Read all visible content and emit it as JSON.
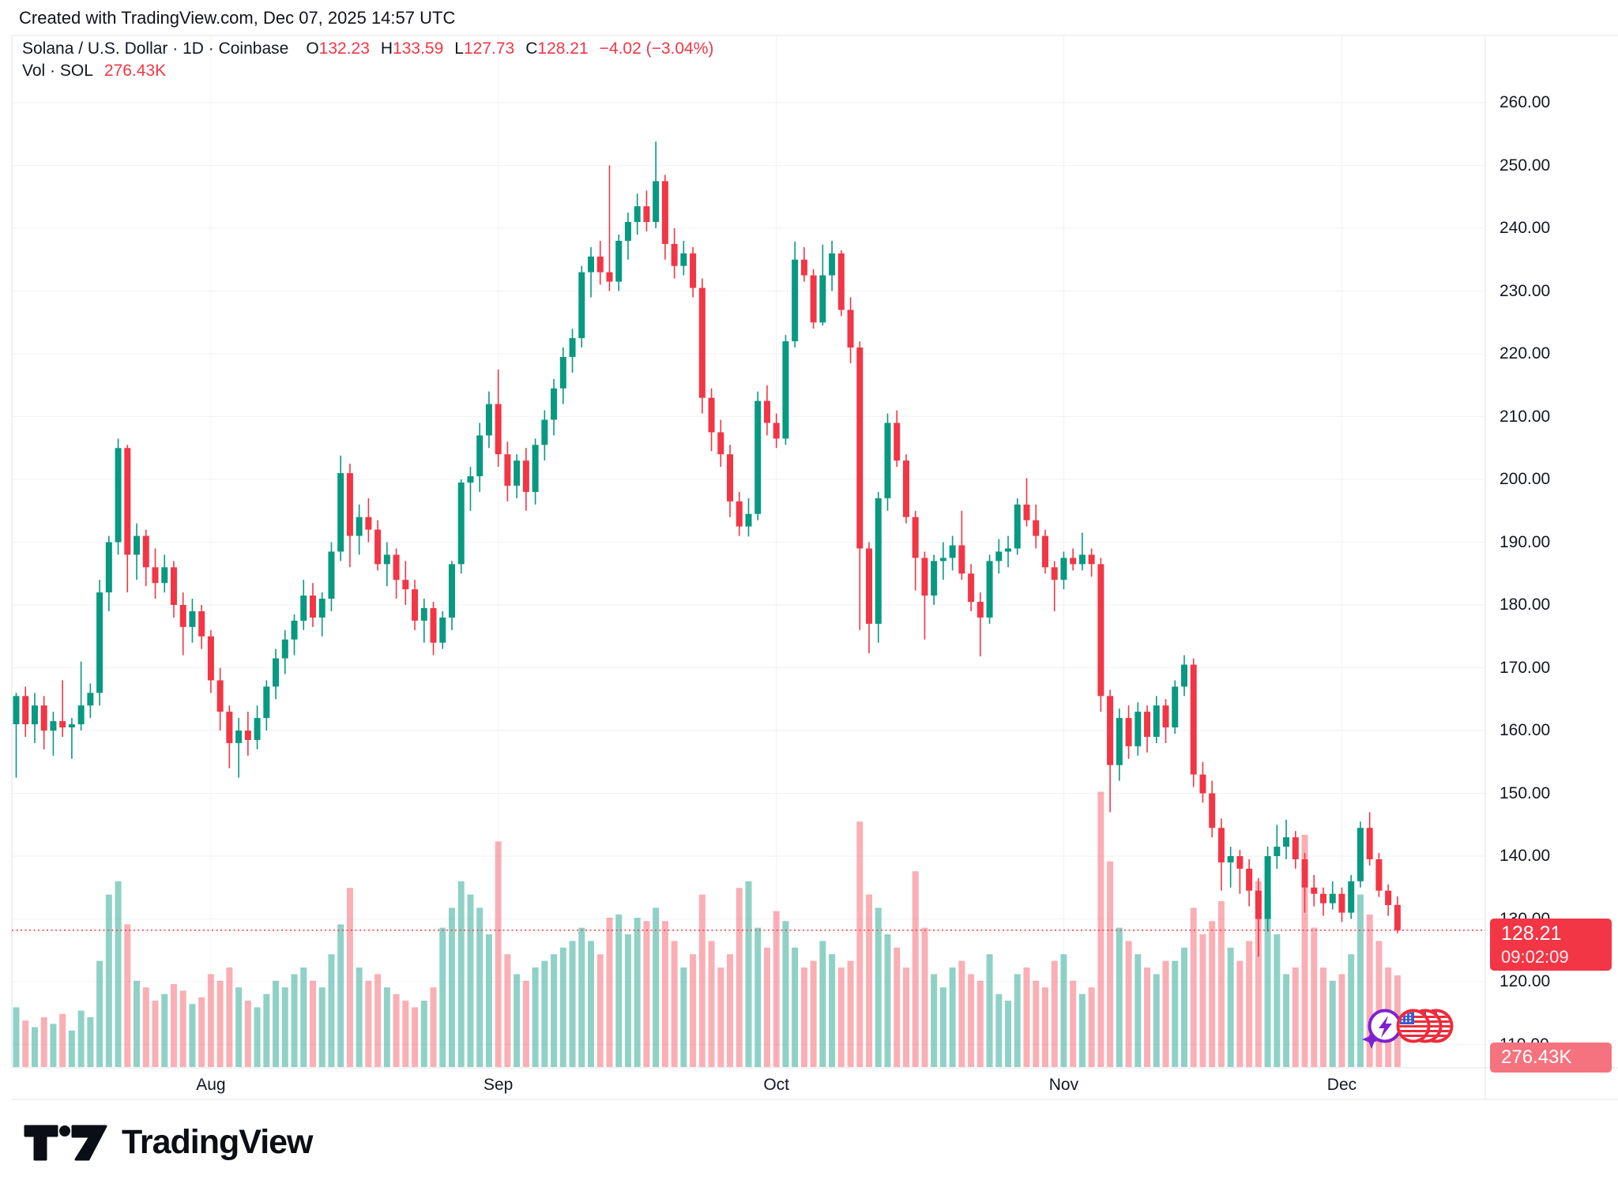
{
  "header": {
    "created_with": "Created with TradingView.com, Dec 07, 2025 14:57 UTC"
  },
  "legend": {
    "title_full": "Solana / U.S. Dollar · 1D · Coinbase",
    "o_label": "O",
    "o_value": "132.23",
    "h_label": "H",
    "h_value": "133.59",
    "l_label": "L",
    "l_value": "127.73",
    "c_label": "C",
    "c_value": "128.21",
    "change": "−4.02 (−3.04%)",
    "vol_label": "Vol · SOL",
    "vol_value": "276.43K"
  },
  "price_scale": {
    "tick_min": 110,
    "tick_max": 260,
    "tick_step": 10,
    "last_label": {
      "price": "128.21",
      "countdown": "09:02:09"
    },
    "volume_badge": "276.43K"
  },
  "footer": {
    "brand": "TradingView"
  },
  "colors": {
    "up": "#089981",
    "down": "#f23645",
    "vol_up": "rgba(8,153,129,0.45)",
    "vol_down": "rgba(242,54,69,0.40)",
    "accent": "#f23645",
    "text": "#131722",
    "grid": "#f0f2f7",
    "border": "#e0e3eb",
    "label_bg": "#f23645",
    "volume_label_bg": "#f5737e",
    "event_purple": "#7e22ce",
    "event_red": "#ee2b39",
    "flag_blue": "#3b5bd0"
  },
  "chart_data": {
    "type": "candlestick",
    "title": "Solana / U.S. Dollar",
    "exchange": "Coinbase",
    "interval": "1D",
    "start_date": "2025-07-11",
    "end_date": "2025-12-07",
    "legend_position": "top-left",
    "grid": true,
    "y_axis": {
      "min": 110,
      "max": 260,
      "step": 10,
      "side": "right"
    },
    "month_ticks": [
      {
        "label": "Aug",
        "day_index": 21
      },
      {
        "label": "Sep",
        "day_index": 52
      },
      {
        "label": "Oct",
        "day_index": 82
      },
      {
        "label": "Nov",
        "day_index": 113
      },
      {
        "label": "Dec",
        "day_index": 143
      }
    ],
    "last": {
      "open": 132.23,
      "high": 133.59,
      "low": 127.73,
      "close": 128.21,
      "change": -4.02,
      "change_pct": -3.04,
      "volume_k": 276.43,
      "countdown": "09:02:09"
    },
    "candles": [
      [
        161,
        166,
        152.5,
        165.5
      ],
      [
        165.5,
        167,
        159,
        161
      ],
      [
        161,
        166,
        158,
        164
      ],
      [
        164,
        165.5,
        157,
        160
      ],
      [
        160,
        163,
        156,
        161.5
      ],
      [
        161.5,
        168,
        159,
        160.5
      ],
      [
        160.5,
        162,
        155.5,
        161
      ],
      [
        161,
        171,
        160,
        164
      ],
      [
        164,
        167.5,
        162,
        166
      ],
      [
        166,
        184,
        164,
        182
      ],
      [
        182,
        191,
        179,
        190
      ],
      [
        190,
        206.5,
        188,
        205
      ],
      [
        205,
        205.5,
        182,
        188
      ],
      [
        188,
        193,
        184,
        191
      ],
      [
        191,
        192,
        183,
        186
      ],
      [
        186,
        189,
        181,
        183.5
      ],
      [
        183.5,
        188,
        182,
        186
      ],
      [
        186,
        187,
        178,
        180
      ],
      [
        180,
        182,
        172,
        176.5
      ],
      [
        176.5,
        181,
        174,
        179
      ],
      [
        179,
        180,
        173,
        175
      ],
      [
        175,
        176,
        166,
        168
      ],
      [
        168,
        170,
        160,
        163
      ],
      [
        163,
        164,
        154,
        158
      ],
      [
        158,
        162,
        152.5,
        160
      ],
      [
        160,
        163,
        156,
        158.5
      ],
      [
        158.5,
        164,
        157,
        162
      ],
      [
        162,
        168,
        160,
        167
      ],
      [
        167,
        173,
        165,
        171.5
      ],
      [
        171.5,
        176,
        169,
        174.5
      ],
      [
        174.5,
        178.5,
        172,
        177.5
      ],
      [
        177.5,
        184,
        176,
        181.5
      ],
      [
        181.5,
        183.5,
        176.5,
        178
      ],
      [
        178,
        182,
        175,
        181
      ],
      [
        181,
        190,
        179,
        188.5
      ],
      [
        188.5,
        203.8,
        187,
        201
      ],
      [
        201,
        202.5,
        186,
        191
      ],
      [
        191,
        196,
        188,
        194
      ],
      [
        194,
        197,
        190,
        192
      ],
      [
        192,
        193.5,
        185.5,
        186.5
      ],
      [
        186.5,
        190,
        183,
        188
      ],
      [
        188,
        189,
        181,
        184
      ],
      [
        184,
        187,
        180,
        182.5
      ],
      [
        182.5,
        184,
        176,
        177.5
      ],
      [
        177.5,
        181,
        174,
        179.5
      ],
      [
        179.5,
        180.5,
        172,
        174
      ],
      [
        174,
        179,
        173,
        178
      ],
      [
        178,
        187,
        176,
        186.5
      ],
      [
        186.5,
        200,
        185,
        199.5
      ],
      [
        199.5,
        202,
        195,
        200.5
      ],
      [
        200.5,
        209,
        198,
        207
      ],
      [
        207,
        214,
        205,
        212
      ],
      [
        212,
        217.5,
        202,
        204
      ],
      [
        204,
        206,
        196.5,
        199
      ],
      [
        199,
        204,
        197,
        203
      ],
      [
        203,
        205,
        195,
        198
      ],
      [
        198,
        206.5,
        196,
        205.5
      ],
      [
        205.5,
        211,
        203,
        209.5
      ],
      [
        209.5,
        216,
        207,
        214.5
      ],
      [
        214.5,
        221,
        212,
        219.5
      ],
      [
        219.5,
        224,
        217,
        222.5
      ],
      [
        222.5,
        234,
        221,
        233
      ],
      [
        233,
        237,
        229,
        235.5
      ],
      [
        235.5,
        238,
        231,
        233
      ],
      [
        233,
        250,
        230,
        231.5
      ],
      [
        231.5,
        239,
        230,
        238
      ],
      [
        238,
        242.5,
        235,
        241
      ],
      [
        241,
        245.5,
        239,
        243.5
      ],
      [
        243.5,
        246,
        239.5,
        241
      ],
      [
        241,
        253.8,
        240,
        247.5
      ],
      [
        247.5,
        248.5,
        235,
        237.5
      ],
      [
        237.5,
        240,
        232,
        234
      ],
      [
        234,
        238,
        232.5,
        236
      ],
      [
        236,
        237,
        229,
        230.5
      ],
      [
        230.5,
        232,
        210.5,
        213
      ],
      [
        213,
        214.5,
        204.5,
        207.5
      ],
      [
        207.5,
        209.5,
        202,
        204
      ],
      [
        204,
        205.5,
        194,
        196.5
      ],
      [
        196.5,
        198,
        191,
        192.5
      ],
      [
        192.5,
        197,
        190.9,
        194.5
      ],
      [
        194.5,
        214,
        193.5,
        212.5
      ],
      [
        212.5,
        215,
        207,
        209
      ],
      [
        209,
        210.5,
        205,
        206.5
      ],
      [
        206.5,
        223,
        205.5,
        222
      ],
      [
        222,
        237.9,
        221,
        235
      ],
      [
        235,
        237,
        231.5,
        232.5
      ],
      [
        232.5,
        233.5,
        224,
        225
      ],
      [
        225,
        237.4,
        224.5,
        232.5
      ],
      [
        232.5,
        238,
        230,
        236
      ],
      [
        236,
        236.5,
        226,
        227
      ],
      [
        227,
        229,
        218.5,
        221
      ],
      [
        221,
        222,
        176,
        189
      ],
      [
        189,
        190,
        172.3,
        177
      ],
      [
        177,
        198,
        174,
        197
      ],
      [
        197,
        210.5,
        195,
        209
      ],
      [
        209,
        211,
        202,
        203
      ],
      [
        203,
        204,
        193,
        194
      ],
      [
        194,
        195,
        182.3,
        187.5
      ],
      [
        187.5,
        188.5,
        174.5,
        181.5
      ],
      [
        181.5,
        188,
        180,
        187
      ],
      [
        187,
        190,
        184,
        187.5
      ],
      [
        187.5,
        191,
        185.5,
        189.5
      ],
      [
        189.5,
        195,
        184,
        185
      ],
      [
        185,
        186.5,
        179,
        180.5
      ],
      [
        180.5,
        182,
        171.8,
        178
      ],
      [
        178,
        188,
        177,
        187
      ],
      [
        187,
        190.5,
        185,
        188.5
      ],
      [
        188.5,
        191,
        186,
        189
      ],
      [
        189,
        197,
        188,
        196
      ],
      [
        196,
        200.2,
        192.5,
        193.5
      ],
      [
        193.5,
        196,
        189,
        191
      ],
      [
        191,
        192,
        185,
        186
      ],
      [
        186,
        187,
        179,
        184
      ],
      [
        184,
        188.5,
        182.5,
        187.5
      ],
      [
        187.5,
        189,
        185.5,
        186.5
      ],
      [
        186.5,
        191.5,
        185.5,
        188
      ],
      [
        188,
        189,
        184.5,
        186.5
      ],
      [
        186.5,
        187.5,
        163,
        165.5
      ],
      [
        165.5,
        166.5,
        147,
        154.5
      ],
      [
        154.5,
        163.5,
        152,
        162
      ],
      [
        162,
        164,
        155.5,
        157.5
      ],
      [
        157.5,
        164.5,
        156,
        163
      ],
      [
        163,
        164,
        156.5,
        159
      ],
      [
        159,
        165.5,
        158,
        164
      ],
      [
        164,
        165,
        158,
        160.5
      ],
      [
        160.5,
        168,
        159.5,
        167
      ],
      [
        167,
        172,
        165.5,
        170.5
      ],
      [
        170.5,
        171.5,
        151,
        153
      ],
      [
        153,
        155,
        148.5,
        150
      ],
      [
        150,
        152,
        143,
        144.5
      ],
      [
        144.5,
        146,
        134.5,
        139
      ],
      [
        139,
        141.5,
        135,
        140
      ],
      [
        140,
        141,
        134,
        138
      ],
      [
        138,
        139.5,
        132,
        134.5
      ],
      [
        134.5,
        136.5,
        124,
        130
      ],
      [
        130,
        141.5,
        128,
        140
      ],
      [
        140,
        145,
        138,
        141.5
      ],
      [
        141.5,
        145.8,
        139.5,
        143
      ],
      [
        143,
        144,
        138,
        139.5
      ],
      [
        139.5,
        140.5,
        131,
        135
      ],
      [
        135,
        137,
        132,
        134
      ],
      [
        134,
        135,
        130.5,
        132.5
      ],
      [
        132.5,
        136,
        131.5,
        134
      ],
      [
        134,
        135,
        129.5,
        131
      ],
      [
        131,
        137,
        130,
        136
      ],
      [
        136,
        145.5,
        135,
        144.5
      ],
      [
        144.5,
        147,
        138.5,
        139.5
      ],
      [
        139.5,
        140.5,
        133.5,
        134.5
      ],
      [
        134.5,
        135.5,
        130.5,
        132.2
      ],
      [
        132.23,
        133.59,
        127.73,
        128.21
      ]
    ],
    "volumes_k": [
      180,
      140,
      120,
      150,
      130,
      160,
      110,
      170,
      150,
      320,
      520,
      560,
      430,
      260,
      240,
      200,
      220,
      250,
      230,
      190,
      210,
      280,
      260,
      300,
      240,
      200,
      180,
      220,
      260,
      240,
      280,
      300,
      260,
      240,
      340,
      430,
      540,
      300,
      260,
      280,
      240,
      220,
      200,
      180,
      200,
      240,
      420,
      480,
      560,
      520,
      480,
      400,
      680,
      340,
      280,
      260,
      300,
      320,
      340,
      360,
      380,
      420,
      380,
      340,
      450,
      460,
      400,
      450,
      440,
      480,
      440,
      380,
      300,
      340,
      520,
      380,
      300,
      340,
      540,
      560,
      420,
      360,
      470,
      440,
      360,
      300,
      320,
      380,
      340,
      300,
      320,
      740,
      520,
      480,
      400,
      360,
      300,
      590,
      420,
      280,
      240,
      300,
      320,
      280,
      260,
      340,
      220,
      200,
      280,
      300,
      260,
      240,
      320,
      340,
      260,
      220,
      240,
      830,
      620,
      420,
      380,
      340,
      300,
      280,
      320,
      320,
      360,
      480,
      400,
      440,
      500,
      360,
      320,
      380,
      560,
      520,
      400,
      280,
      300,
      700,
      420,
      300,
      260,
      280,
      340,
      520,
      460,
      380,
      300,
      276.43
    ]
  }
}
